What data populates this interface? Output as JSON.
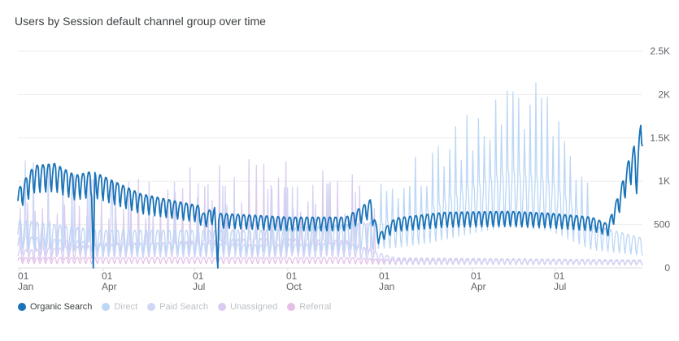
{
  "chart_data": {
    "type": "line",
    "title": "Users by Session default channel group over time",
    "y_ticks": [
      "2.5K",
      "2K",
      "1.5K",
      "1K",
      "500",
      "0"
    ],
    "ylim": [
      0,
      2500
    ],
    "x_ticks": [
      {
        "day": "01",
        "month": "Jan"
      },
      {
        "day": "01",
        "month": "Apr"
      },
      {
        "day": "01",
        "month": "Jul"
      },
      {
        "day": "01",
        "month": "Oct"
      },
      {
        "day": "01",
        "month": "Jan"
      },
      {
        "day": "01",
        "month": "Apr"
      },
      {
        "day": "01",
        "month": "Jul"
      }
    ],
    "grid": true,
    "legend_position": "bottom",
    "series": [
      {
        "name": "Organic Search",
        "color": "#1a73b8",
        "active": true,
        "keypoints": [
          [
            0,
            800
          ],
          [
            20,
            1050
          ],
          [
            45,
            1070
          ],
          [
            70,
            950
          ],
          [
            90,
            990
          ],
          [
            92,
            0
          ],
          [
            94,
            980
          ],
          [
            150,
            760
          ],
          [
            190,
            690
          ],
          [
            220,
            640
          ],
          [
            226,
            560
          ],
          [
            240,
            620
          ],
          [
            244,
            0
          ],
          [
            245,
            560
          ],
          [
            330,
            520
          ],
          [
            400,
            520
          ],
          [
            420,
            630
          ],
          [
            430,
            700
          ],
          [
            440,
            340
          ],
          [
            460,
            510
          ],
          [
            520,
            570
          ],
          [
            600,
            580
          ],
          [
            650,
            560
          ],
          [
            700,
            520
          ],
          [
            720,
            450
          ],
          [
            735,
            800
          ],
          [
            745,
            1100
          ],
          [
            752,
            1250
          ],
          [
            755,
            1040
          ],
          [
            762,
            1700
          ]
        ]
      },
      {
        "name": "Direct",
        "color": "#bcd7f5",
        "active": false,
        "keypoints": [
          [
            0,
            420
          ],
          [
            100,
            330
          ],
          [
            200,
            330
          ],
          [
            300,
            330
          ],
          [
            400,
            380
          ],
          [
            460,
            420
          ],
          [
            500,
            520
          ],
          [
            560,
            750
          ],
          [
            600,
            880
          ],
          [
            650,
            780
          ],
          [
            700,
            380
          ],
          [
            762,
            260
          ]
        ]
      },
      {
        "name": "Paid Search",
        "color": "#d0d6f5",
        "active": false,
        "keypoints": [
          [
            0,
            280
          ],
          [
            100,
            220
          ],
          [
            200,
            220
          ],
          [
            300,
            200
          ],
          [
            400,
            220
          ],
          [
            460,
            90
          ],
          [
            762,
            70
          ]
        ]
      },
      {
        "name": "Unassigned",
        "color": "#dccbf0",
        "active": false,
        "keypoints": [
          [
            0,
            150
          ],
          [
            100,
            200
          ],
          [
            200,
            230
          ],
          [
            300,
            260
          ],
          [
            400,
            240
          ],
          [
            460,
            80
          ],
          [
            762,
            60
          ]
        ]
      },
      {
        "name": "Referral",
        "color": "#e6bfe8",
        "active": false,
        "keypoints": [
          [
            0,
            90
          ],
          [
            200,
            90
          ],
          [
            400,
            90
          ],
          [
            460,
            70
          ],
          [
            762,
            70
          ]
        ]
      }
    ]
  }
}
